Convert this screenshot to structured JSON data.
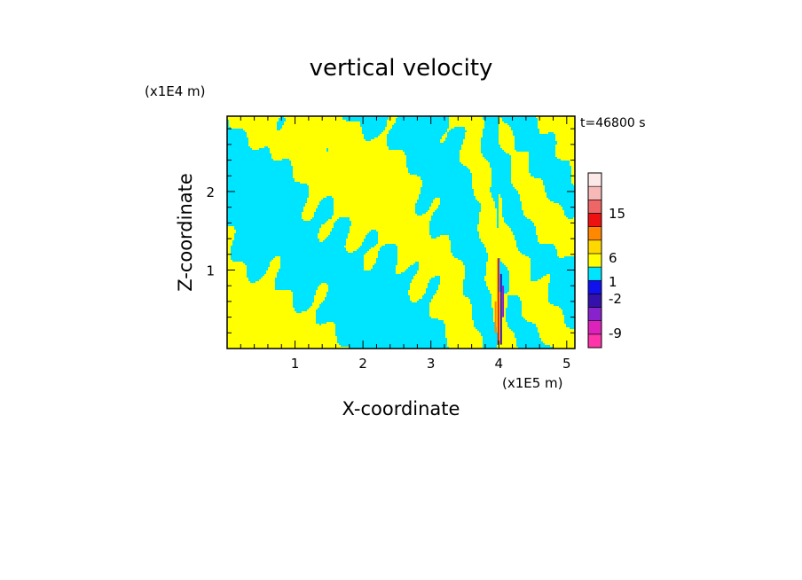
{
  "chart_data": {
    "type": "heatmap",
    "title": "vertical velocity",
    "xlabel": "X-coordinate",
    "ylabel": "Z-coordinate",
    "x_unit": "(x1E5 m)",
    "y_unit": "(x1E4 m)",
    "time_label": "t=46800 s",
    "xlim": [
      0,
      5.12
    ],
    "ylim": [
      0,
      2.96
    ],
    "x_ticks": [
      "1",
      "2",
      "3",
      "4",
      "5"
    ],
    "x_tick_values": [
      1,
      2,
      3,
      4,
      5
    ],
    "y_ticks": [
      "1",
      "2"
    ],
    "y_tick_values": [
      1,
      2
    ],
    "colorbar": {
      "tick_labels": [
        "15",
        "6",
        "1",
        "-2",
        "-9"
      ],
      "tick_values": [
        15,
        6,
        1,
        -2,
        -9
      ],
      "levels": [
        {
          "color": "#ff33aa",
          "range": "< -9"
        },
        {
          "color": "#dd22bb",
          "range": "-9 .. -6"
        },
        {
          "color": "#8822cc",
          "range": "-6 .. -4"
        },
        {
          "color": "#3311aa",
          "range": "-4 .. -2"
        },
        {
          "color": "#1111ee",
          "range": "-2 .. -1"
        },
        {
          "color": "#00e5ff",
          "range": "-1 .. 0"
        },
        {
          "color": "#ffff00",
          "range": "0 .. 1"
        },
        {
          "color": "#ffd800",
          "range": "1 .. 3"
        },
        {
          "color": "#ff8800",
          "range": "3 .. 6"
        },
        {
          "color": "#ee1111",
          "range": "6 .. 10"
        },
        {
          "color": "#ee6666",
          "range": "10 .. 15"
        },
        {
          "color": "#f7b8b8",
          "range": "15 .. 20"
        },
        {
          "color": "#fde8e8",
          "range": "> 20"
        }
      ]
    },
    "field_description": "wave pattern of positive (yellow) and negative (cyan) vertical velocity with strong updraft/downdraft column near x=4.0"
  }
}
